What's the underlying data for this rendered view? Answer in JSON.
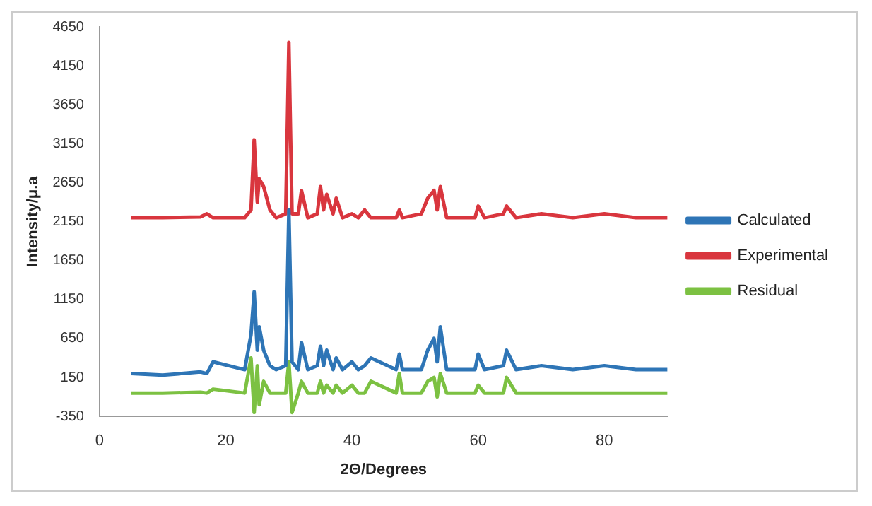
{
  "chart_data": {
    "type": "line",
    "xlabel": "2Θ/Degrees",
    "ylabel": "Intensity/μ.a",
    "x": [
      5,
      10,
      16,
      17,
      18,
      23,
      24,
      24.5,
      25,
      25.3,
      26,
      27,
      28,
      29.5,
      30,
      30.5,
      31.5,
      32,
      33,
      34.5,
      35,
      35.5,
      36,
      37,
      37.5,
      38.5,
      40,
      41,
      42,
      43,
      47,
      47.5,
      48,
      51,
      52,
      53,
      53.5,
      54,
      55,
      59.5,
      60,
      61,
      64,
      64.5,
      66,
      70,
      75,
      80,
      85,
      90
    ],
    "series": [
      {
        "name": "Calculated",
        "color": "#2e75b6",
        "values": [
          200,
          180,
          220,
          200,
          350,
          250,
          700,
          1250,
          500,
          800,
          500,
          300,
          250,
          300,
          2300,
          350,
          250,
          600,
          250,
          300,
          550,
          300,
          500,
          250,
          400,
          250,
          350,
          250,
          300,
          400,
          250,
          450,
          250,
          250,
          500,
          650,
          350,
          800,
          250,
          250,
          450,
          250,
          300,
          500,
          250,
          300,
          250,
          300,
          250,
          250
        ]
      },
      {
        "name": "Experimental",
        "color": "#d9363e",
        "values": [
          2200,
          2200,
          2210,
          2250,
          2200,
          2200,
          2300,
          3200,
          2400,
          2700,
          2600,
          2300,
          2200,
          2250,
          4450,
          2250,
          2250,
          2550,
          2200,
          2250,
          2600,
          2300,
          2500,
          2250,
          2450,
          2200,
          2250,
          2200,
          2300,
          2200,
          2200,
          2300,
          2200,
          2250,
          2450,
          2550,
          2300,
          2600,
          2200,
          2200,
          2350,
          2200,
          2250,
          2350,
          2200,
          2250,
          2200,
          2250,
          2200,
          2200
        ]
      },
      {
        "name": "Residual",
        "color": "#7cc142",
        "values": [
          -50,
          -50,
          -40,
          -50,
          0,
          -50,
          400,
          -300,
          300,
          -200,
          100,
          -50,
          -50,
          -50,
          350,
          -300,
          -50,
          100,
          -50,
          -50,
          100,
          -50,
          50,
          -50,
          50,
          -50,
          50,
          -50,
          -50,
          100,
          -50,
          200,
          -50,
          -50,
          100,
          150,
          -100,
          200,
          -50,
          -50,
          50,
          -50,
          -50,
          150,
          -50,
          -50,
          -50,
          -50,
          -50,
          -50
        ]
      }
    ],
    "xlim": [
      0,
      90
    ],
    "xticks": [
      0,
      20,
      40,
      60,
      80
    ],
    "ylim": [
      -350,
      4650
    ],
    "yticks": [
      -350,
      150,
      650,
      1150,
      1650,
      2150,
      2650,
      3150,
      3650,
      4150,
      4650
    ],
    "grid": false,
    "legend": "right",
    "marker": "none",
    "line_style": "solid"
  }
}
